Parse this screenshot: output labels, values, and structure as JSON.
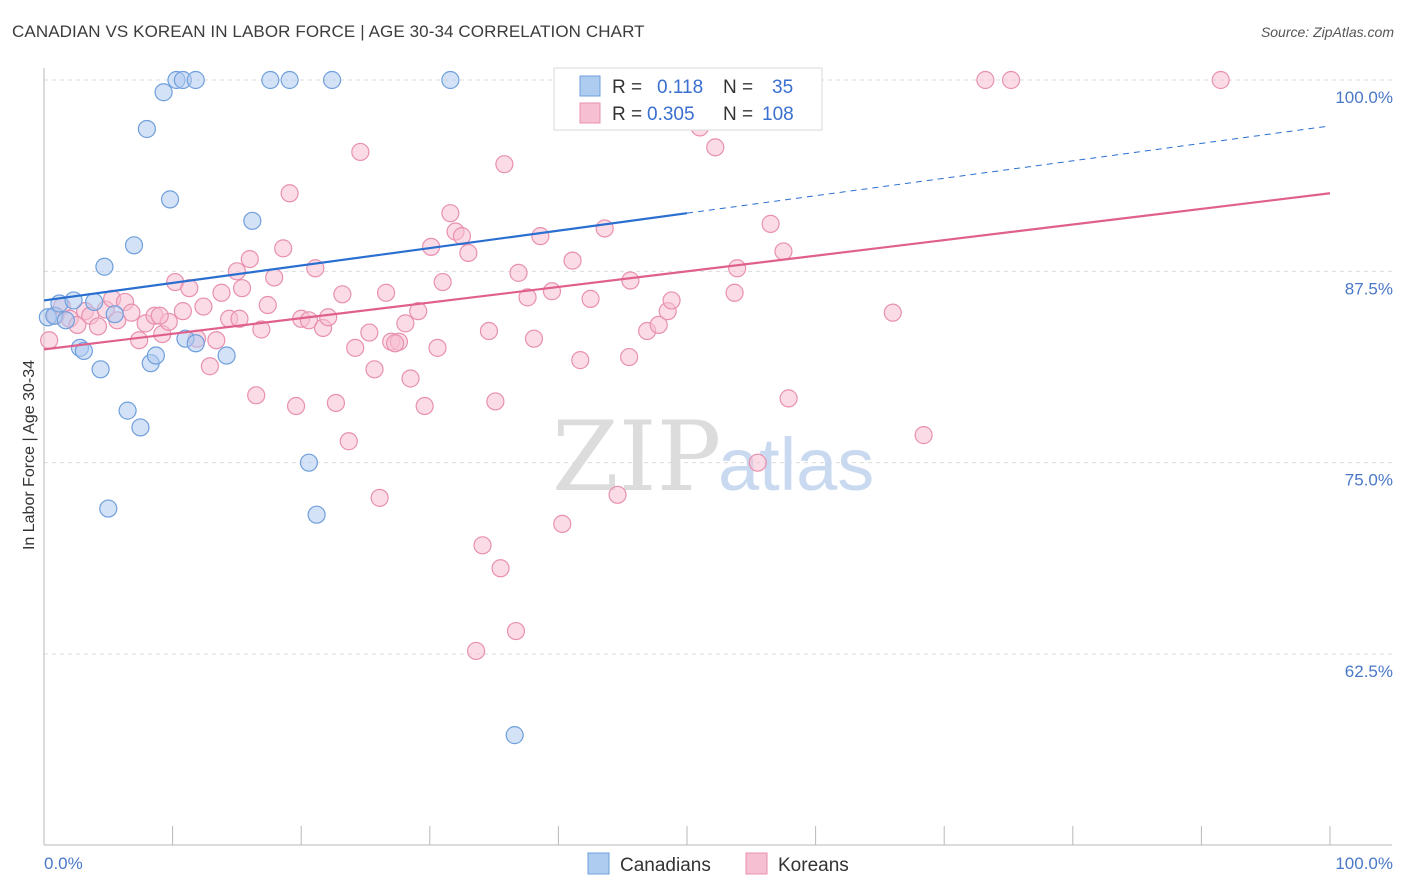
{
  "header": {
    "title": "CANADIAN VS KOREAN IN LABOR FORCE | AGE 30-34 CORRELATION CHART",
    "source": "Source: ZipAtlas.com"
  },
  "legend": {
    "canadians": {
      "r_label": "R =",
      "r_value": "0.118",
      "n_label": "N =",
      "n_value": "35"
    },
    "koreans": {
      "r_label": "R =",
      "r_value": "0.305",
      "n_label": "N =",
      "n_value": "108"
    }
  },
  "watermark": {
    "zip": "ZIP",
    "atlas": "atlas"
  },
  "colors": {
    "canadians_fill": "#aecbf0",
    "canadians_stroke": "#6f9fdc",
    "canadians_line": "#2a6fd0",
    "koreans_fill": "#f7bfd2",
    "koreans_stroke": "#e890b0",
    "koreans_line": "#e0608c",
    "tick_label": "#4a78c8"
  },
  "chart_data": {
    "type": "scatter",
    "title": "CANADIAN VS KOREAN IN LABOR FORCE | AGE 30-34 CORRELATION CHART",
    "xlabel": "",
    "ylabel": "In Labor Force | Age 30-34",
    "xlim": [
      0,
      100
    ],
    "ylim": [
      52,
      102
    ],
    "x_tick_labels": [
      "0.0%",
      "100.0%"
    ],
    "y_ticks": [
      62.5,
      75.0,
      87.5,
      100.0
    ],
    "y_tick_labels": [
      "62.5%",
      "75.0%",
      "87.5%",
      "100.0%"
    ],
    "grid": "horizontal dashed",
    "legend_position": "top-center",
    "series": [
      {
        "name": "Canadians",
        "r": 0.118,
        "n": 35,
        "trend": {
          "x0": 0,
          "y0": 85.6,
          "x1": 100,
          "y1": 97.0,
          "solid_until": 50
        },
        "points": [
          [
            0.3,
            84.5
          ],
          [
            0.8,
            84.6
          ],
          [
            1.2,
            85.4
          ],
          [
            1.7,
            84.3
          ],
          [
            2.3,
            85.6
          ],
          [
            2.8,
            82.5
          ],
          [
            3.1,
            82.3
          ],
          [
            3.9,
            85.5
          ],
          [
            4.4,
            81.1
          ],
          [
            4.7,
            87.8
          ],
          [
            5.0,
            72.0
          ],
          [
            5.5,
            84.7
          ],
          [
            6.5,
            78.4
          ],
          [
            7.0,
            89.2
          ],
          [
            7.5,
            77.3
          ],
          [
            8.0,
            96.8
          ],
          [
            8.3,
            81.5
          ],
          [
            8.7,
            82.0
          ],
          [
            9.3,
            99.2
          ],
          [
            9.8,
            92.2
          ],
          [
            10.3,
            100.0
          ],
          [
            10.8,
            100.0
          ],
          [
            11.0,
            83.1
          ],
          [
            11.8,
            100.0
          ],
          [
            11.8,
            82.8
          ],
          [
            14.2,
            82.0
          ],
          [
            16.2,
            90.8
          ],
          [
            17.6,
            100.0
          ],
          [
            19.1,
            100.0
          ],
          [
            20.6,
            75.0
          ],
          [
            21.2,
            71.6
          ],
          [
            22.4,
            100.0
          ],
          [
            31.6,
            100.0
          ],
          [
            36.6,
            57.2
          ],
          [
            47.7,
            100.0
          ]
        ]
      },
      {
        "name": "Koreans",
        "r": 0.305,
        "n": 108,
        "trend": {
          "x0": 0,
          "y0": 82.4,
          "x1": 100,
          "y1": 92.6,
          "solid_until": 100
        },
        "points": [
          [
            0.4,
            83.0
          ],
          [
            0.9,
            84.6
          ],
          [
            1.4,
            85.2
          ],
          [
            2.0,
            84.4
          ],
          [
            2.6,
            84.0
          ],
          [
            3.2,
            84.9
          ],
          [
            3.6,
            84.6
          ],
          [
            4.2,
            83.9
          ],
          [
            4.8,
            85.0
          ],
          [
            5.3,
            85.7
          ],
          [
            5.7,
            84.3
          ],
          [
            6.3,
            85.5
          ],
          [
            6.8,
            84.8
          ],
          [
            7.4,
            83.0
          ],
          [
            7.9,
            84.1
          ],
          [
            8.6,
            84.6
          ],
          [
            9.2,
            83.4
          ],
          [
            9.7,
            84.2
          ],
          [
            10.2,
            86.8
          ],
          [
            10.8,
            84.9
          ],
          [
            11.3,
            86.4
          ],
          [
            11.9,
            83.1
          ],
          [
            12.4,
            85.2
          ],
          [
            12.9,
            81.3
          ],
          [
            13.4,
            83.0
          ],
          [
            13.8,
            86.1
          ],
          [
            14.4,
            84.4
          ],
          [
            15.0,
            87.5
          ],
          [
            15.4,
            86.4
          ],
          [
            16.0,
            88.3
          ],
          [
            16.5,
            79.4
          ],
          [
            16.9,
            83.7
          ],
          [
            17.4,
            85.3
          ],
          [
            17.9,
            87.1
          ],
          [
            18.6,
            89.0
          ],
          [
            19.1,
            92.6
          ],
          [
            19.6,
            78.7
          ],
          [
            20.0,
            84.4
          ],
          [
            20.6,
            84.3
          ],
          [
            21.1,
            87.7
          ],
          [
            21.7,
            83.8
          ],
          [
            22.1,
            84.5
          ],
          [
            22.7,
            78.9
          ],
          [
            23.2,
            86.0
          ],
          [
            23.7,
            76.4
          ],
          [
            24.2,
            82.5
          ],
          [
            24.6,
            95.3
          ],
          [
            25.3,
            83.5
          ],
          [
            25.7,
            81.1
          ],
          [
            26.1,
            72.7
          ],
          [
            26.6,
            86.1
          ],
          [
            27.0,
            82.9
          ],
          [
            27.6,
            82.9
          ],
          [
            28.1,
            84.1
          ],
          [
            28.5,
            80.5
          ],
          [
            29.1,
            84.9
          ],
          [
            29.6,
            78.7
          ],
          [
            30.1,
            89.1
          ],
          [
            30.6,
            82.5
          ],
          [
            31.0,
            86.8
          ],
          [
            31.6,
            91.3
          ],
          [
            32.0,
            90.1
          ],
          [
            32.5,
            89.8
          ],
          [
            33.0,
            88.7
          ],
          [
            33.6,
            62.7
          ],
          [
            34.1,
            69.6
          ],
          [
            34.6,
            83.6
          ],
          [
            35.1,
            79.0
          ],
          [
            35.5,
            68.1
          ],
          [
            35.8,
            94.5
          ],
          [
            36.9,
            87.4
          ],
          [
            37.6,
            85.8
          ],
          [
            38.1,
            83.1
          ],
          [
            38.6,
            89.8
          ],
          [
            39.5,
            86.2
          ],
          [
            40.3,
            71.0
          ],
          [
            41.1,
            88.2
          ],
          [
            41.7,
            81.7
          ],
          [
            42.5,
            85.7
          ],
          [
            43.6,
            90.3
          ],
          [
            44.6,
            72.9
          ],
          [
            45.5,
            81.9
          ],
          [
            45.6,
            86.9
          ],
          [
            46.9,
            83.6
          ],
          [
            47.8,
            84.0
          ],
          [
            48.5,
            84.9
          ],
          [
            48.8,
            85.6
          ],
          [
            50.0,
            99.5
          ],
          [
            50.5,
            98.0
          ],
          [
            51.0,
            96.9
          ],
          [
            52.0,
            99.0
          ],
          [
            52.2,
            95.6
          ],
          [
            53.7,
            86.1
          ],
          [
            53.9,
            87.7
          ],
          [
            55.5,
            75.0
          ],
          [
            56.5,
            90.6
          ],
          [
            57.5,
            88.8
          ],
          [
            57.9,
            79.2
          ],
          [
            58.2,
            100.0
          ],
          [
            66.0,
            84.8
          ],
          [
            68.4,
            76.8
          ],
          [
            73.2,
            100.0
          ],
          [
            75.2,
            100.0
          ],
          [
            91.5,
            100.0
          ],
          [
            36.7,
            64.0
          ],
          [
            15.2,
            84.4
          ],
          [
            9.0,
            84.6
          ],
          [
            27.3,
            82.8
          ]
        ]
      }
    ]
  },
  "bottom_legend": {
    "canadians": "Canadians",
    "koreans": "Koreans"
  }
}
